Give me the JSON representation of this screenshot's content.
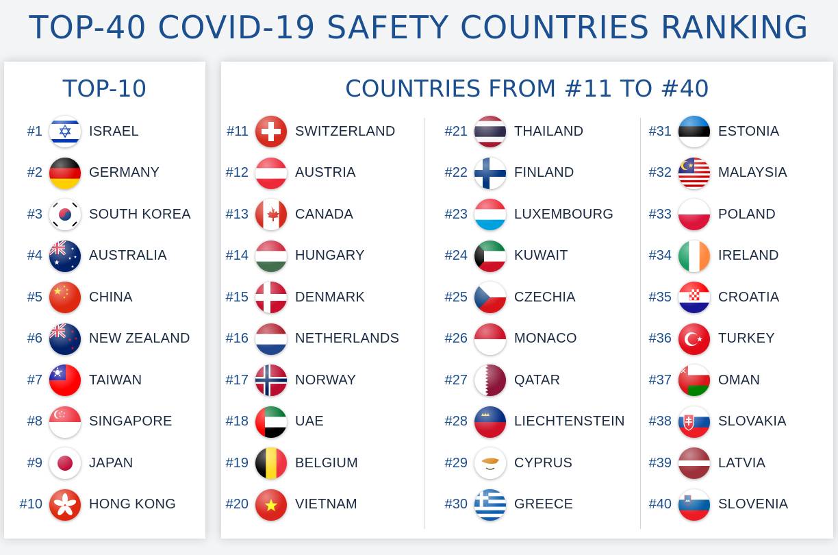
{
  "title": "TOP-40 COVID-19 SAFETY COUNTRIES RANKING",
  "top10": {
    "heading": "TOP-10",
    "items": [
      {
        "rank": "#1",
        "country": "ISRAEL",
        "flag": "israel-flag-icon"
      },
      {
        "rank": "#2",
        "country": "GERMANY",
        "flag": "germany-flag-icon"
      },
      {
        "rank": "#3",
        "country": "SOUTH KOREA",
        "flag": "south-korea-flag-icon"
      },
      {
        "rank": "#4",
        "country": "AUSTRALIA",
        "flag": "australia-flag-icon"
      },
      {
        "rank": "#5",
        "country": "CHINA",
        "flag": "china-flag-icon"
      },
      {
        "rank": "#6",
        "country": "NEW ZEALAND",
        "flag": "new-zealand-flag-icon"
      },
      {
        "rank": "#7",
        "country": "TAIWAN",
        "flag": "taiwan-flag-icon"
      },
      {
        "rank": "#8",
        "country": "SINGAPORE",
        "flag": "singapore-flag-icon"
      },
      {
        "rank": "#9",
        "country": "JAPAN",
        "flag": "japan-flag-icon"
      },
      {
        "rank": "#10",
        "country": "HONG KONG",
        "flag": "hong-kong-flag-icon"
      }
    ]
  },
  "rest": {
    "heading": "COUNTRIES FROM #11 TO #40",
    "columns": [
      [
        {
          "rank": "#11",
          "country": "SWITZERLAND",
          "flag": "switzerland-flag-icon"
        },
        {
          "rank": "#12",
          "country": "AUSTRIA",
          "flag": "austria-flag-icon"
        },
        {
          "rank": "#13",
          "country": "CANADA",
          "flag": "canada-flag-icon"
        },
        {
          "rank": "#14",
          "country": "HUNGARY",
          "flag": "hungary-flag-icon"
        },
        {
          "rank": "#15",
          "country": "DENMARK",
          "flag": "denmark-flag-icon"
        },
        {
          "rank": "#16",
          "country": "NETHERLANDS",
          "flag": "netherlands-flag-icon"
        },
        {
          "rank": "#17",
          "country": "NORWAY",
          "flag": "norway-flag-icon"
        },
        {
          "rank": "#18",
          "country": "UAE",
          "flag": "uae-flag-icon"
        },
        {
          "rank": "#19",
          "country": "BELGIUM",
          "flag": "belgium-flag-icon"
        },
        {
          "rank": "#20",
          "country": "VIETNAM",
          "flag": "vietnam-flag-icon"
        }
      ],
      [
        {
          "rank": "#21",
          "country": "THAILAND",
          "flag": "thailand-flag-icon"
        },
        {
          "rank": "#22",
          "country": "FINLAND",
          "flag": "finland-flag-icon"
        },
        {
          "rank": "#23",
          "country": "LUXEMBOURG",
          "flag": "luxembourg-flag-icon"
        },
        {
          "rank": "#24",
          "country": "KUWAIT",
          "flag": "kuwait-flag-icon"
        },
        {
          "rank": "#25",
          "country": "CZECHIA",
          "flag": "czechia-flag-icon"
        },
        {
          "rank": "#26",
          "country": "MONACO",
          "flag": "monaco-flag-icon"
        },
        {
          "rank": "#27",
          "country": "QATAR",
          "flag": "qatar-flag-icon"
        },
        {
          "rank": "#28",
          "country": "LIECHTENSTEIN",
          "flag": "liechtenstein-flag-icon"
        },
        {
          "rank": "#29",
          "country": "CYPRUS",
          "flag": "cyprus-flag-icon"
        },
        {
          "rank": "#30",
          "country": "GREECE",
          "flag": "greece-flag-icon"
        }
      ],
      [
        {
          "rank": "#31",
          "country": "ESTONIA",
          "flag": "estonia-flag-icon"
        },
        {
          "rank": "#32",
          "country": "MALAYSIA",
          "flag": "malaysia-flag-icon"
        },
        {
          "rank": "#33",
          "country": "POLAND",
          "flag": "poland-flag-icon"
        },
        {
          "rank": "#34",
          "country": "IRELAND",
          "flag": "ireland-flag-icon"
        },
        {
          "rank": "#35",
          "country": "CROATIA",
          "flag": "croatia-flag-icon"
        },
        {
          "rank": "#36",
          "country": "TURKEY",
          "flag": "turkey-flag-icon"
        },
        {
          "rank": "#37",
          "country": "OMAN",
          "flag": "oman-flag-icon"
        },
        {
          "rank": "#38",
          "country": "SLOVAKIA",
          "flag": "slovakia-flag-icon"
        },
        {
          "rank": "#39",
          "country": "LATVIA",
          "flag": "latvia-flag-icon"
        },
        {
          "rank": "#40",
          "country": "SLOVENIA",
          "flag": "slovenia-flag-icon"
        }
      ]
    ]
  },
  "colors": {
    "title": "#1b4f8f",
    "rank": "#1b4f8f",
    "country": "#1a2a40",
    "panel": "#ffffff",
    "background": "#f2f4f6"
  }
}
